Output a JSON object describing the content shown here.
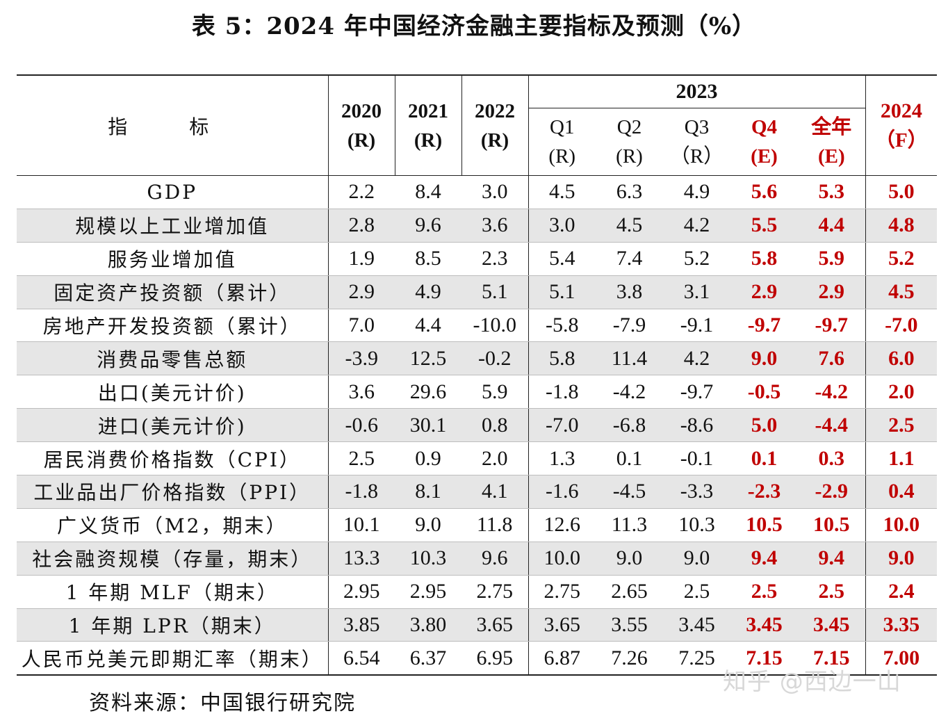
{
  "title": "表 5：2024 年中国经济金融主要指标及预测（%）",
  "header": {
    "indicator": "指 标",
    "years": [
      {
        "line1": "2020",
        "line2": "(R)"
      },
      {
        "line1": "2021",
        "line2": "(R)"
      },
      {
        "line1": "2022",
        "line2": "(R)"
      }
    ],
    "group_2023": "2023",
    "quarters": [
      {
        "line1": "Q1",
        "line2": "(R)"
      },
      {
        "line1": "Q2",
        "line2": "(R)"
      },
      {
        "line1": "Q3",
        "line2": "（R）"
      },
      {
        "line1": "Q4",
        "line2": "(E)"
      },
      {
        "line1": "全年",
        "line2": "(E)"
      }
    ],
    "forecast": {
      "line1": "2024",
      "line2": "（F）"
    }
  },
  "rows": [
    {
      "name": "GDP",
      "v": [
        "2.2",
        "8.4",
        "3.0",
        "4.5",
        "6.3",
        "4.9",
        "5.6",
        "5.3",
        "5.0"
      ]
    },
    {
      "name": "规模以上工业增加值",
      "v": [
        "2.8",
        "9.6",
        "3.6",
        "3.0",
        "4.5",
        "4.2",
        "5.5",
        "4.4",
        "4.8"
      ]
    },
    {
      "name": "服务业增加值",
      "v": [
        "1.9",
        "8.5",
        "2.3",
        "5.4",
        "7.4",
        "5.2",
        "5.8",
        "5.9",
        "5.2"
      ]
    },
    {
      "name": "固定资产投资额（累计）",
      "v": [
        "2.9",
        "4.9",
        "5.1",
        "5.1",
        "3.8",
        "3.1",
        "2.9",
        "2.9",
        "4.5"
      ]
    },
    {
      "name": "房地产开发投资额（累计）",
      "v": [
        "7.0",
        "4.4",
        "-10.0",
        "-5.8",
        "-7.9",
        "-9.1",
        "-9.7",
        "-9.7",
        "-7.0"
      ]
    },
    {
      "name": "消费品零售总额",
      "v": [
        "-3.9",
        "12.5",
        "-0.2",
        "5.8",
        "11.4",
        "4.2",
        "9.0",
        "7.6",
        "6.0"
      ]
    },
    {
      "name": "出口(美元计价)",
      "v": [
        "3.6",
        "29.6",
        "5.9",
        "-1.8",
        "-4.2",
        "-9.7",
        "-0.5",
        "-4.2",
        "2.0"
      ]
    },
    {
      "name": "进口(美元计价)",
      "v": [
        "-0.6",
        "30.1",
        "0.8",
        "-7.0",
        "-6.8",
        "-8.6",
        "5.0",
        "-4.4",
        "2.5"
      ]
    },
    {
      "name": "居民消费价格指数（CPI）",
      "v": [
        "2.5",
        "0.9",
        "2.0",
        "1.3",
        "0.1",
        "-0.1",
        "0.1",
        "0.3",
        "1.1"
      ]
    },
    {
      "name": "工业品出厂价格指数（PPI）",
      "v": [
        "-1.8",
        "8.1",
        "4.1",
        "-1.6",
        "-4.5",
        "-3.3",
        "-2.3",
        "-2.9",
        "0.4"
      ]
    },
    {
      "name": "广义货币（M2，期末）",
      "v": [
        "10.1",
        "9.0",
        "11.8",
        "12.6",
        "11.3",
        "10.3",
        "10.5",
        "10.5",
        "10.0"
      ]
    },
    {
      "name": "社会融资规模（存量，期末）",
      "v": [
        "13.3",
        "10.3",
        "9.6",
        "10.0",
        "9.0",
        "9.0",
        "9.4",
        "9.4",
        "9.0"
      ]
    },
    {
      "name": "1 年期 MLF（期末）",
      "v": [
        "2.95",
        "2.95",
        "2.75",
        "2.75",
        "2.65",
        "2.5",
        "2.5",
        "2.5",
        "2.4"
      ]
    },
    {
      "name": "1 年期 LPR（期末）",
      "v": [
        "3.85",
        "3.80",
        "3.65",
        "3.65",
        "3.55",
        "3.45",
        "3.45",
        "3.45",
        "3.35"
      ]
    },
    {
      "name": "人民币兑美元即期汇率（期末）",
      "v": [
        "6.54",
        "6.37",
        "6.95",
        "6.87",
        "7.26",
        "7.25",
        "7.15",
        "7.15",
        "7.00"
      ]
    }
  ],
  "source": "资料来源：中国银行研究院",
  "watermark": "知乎 @西边一山",
  "colors": {
    "highlight": "#c00000",
    "row_shade": "#e6e6e6"
  }
}
